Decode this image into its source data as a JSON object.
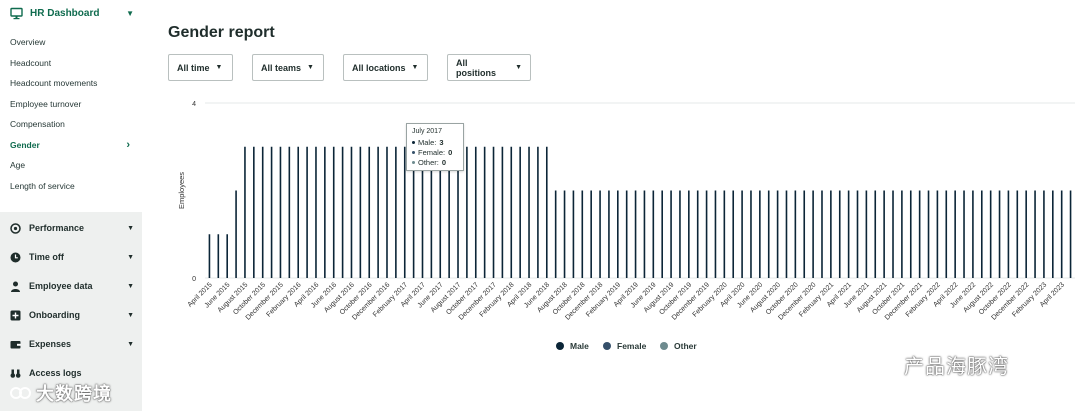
{
  "sidebar": {
    "section_title": "HR Dashboard",
    "sub_items": [
      {
        "label": "Overview",
        "active": false
      },
      {
        "label": "Headcount",
        "active": false
      },
      {
        "label": "Headcount movements",
        "active": false
      },
      {
        "label": "Employee turnover",
        "active": false
      },
      {
        "label": "Compensation",
        "active": false
      },
      {
        "label": "Gender",
        "active": true
      },
      {
        "label": "Age",
        "active": false
      },
      {
        "label": "Length of service",
        "active": false
      }
    ],
    "sections": [
      {
        "label": "Performance",
        "icon": "target-icon"
      },
      {
        "label": "Time off",
        "icon": "clock-icon"
      },
      {
        "label": "Employee data",
        "icon": "person-icon"
      },
      {
        "label": "Onboarding",
        "icon": "plus-square-icon"
      },
      {
        "label": "Expenses",
        "icon": "wallet-icon"
      },
      {
        "label": "Access logs",
        "icon": "binoculars-icon"
      }
    ]
  },
  "page": {
    "title": "Gender report"
  },
  "filters": [
    {
      "label": "All time"
    },
    {
      "label": "All teams"
    },
    {
      "label": "All locations"
    },
    {
      "label": "All positions"
    }
  ],
  "tooltip": {
    "title": "July 2017",
    "rows": [
      {
        "label": "Male:",
        "value": "3"
      },
      {
        "label": "Female:",
        "value": "0"
      },
      {
        "label": "Other:",
        "value": "0"
      }
    ]
  },
  "colors": {
    "male": "#0b2537",
    "female": "#35506a",
    "other": "#6e8b8f",
    "accent": "#0f6b4e"
  },
  "chart_data": {
    "type": "bar",
    "ylabel": "Employees",
    "yticks": [
      0,
      4
    ],
    "ylim": [
      0,
      4
    ],
    "grid": true,
    "legend_position": "bottom-center",
    "start_year": 2015,
    "start_month": 4,
    "categories": [
      "April 2015",
      "May 2015",
      "June 2015",
      "July 2015",
      "August 2015",
      "September 2015",
      "October 2015",
      "November 2015",
      "December 2015",
      "January 2016",
      "February 2016",
      "March 2016",
      "April 2016",
      "May 2016",
      "June 2016",
      "July 2016",
      "August 2016",
      "September 2016",
      "October 2016",
      "November 2016",
      "December 2016",
      "January 2017",
      "February 2017",
      "March 2017",
      "April 2017",
      "May 2017",
      "June 2017",
      "July 2017",
      "August 2017",
      "September 2017",
      "October 2017",
      "November 2017",
      "December 2017",
      "January 2018",
      "February 2018",
      "March 2018",
      "April 2018",
      "May 2018",
      "June 2018",
      "July 2018",
      "August 2018",
      "September 2018",
      "October 2018",
      "November 2018",
      "December 2018",
      "January 2019",
      "February 2019",
      "March 2019",
      "April 2019",
      "May 2019",
      "June 2019",
      "July 2019",
      "August 2019",
      "September 2019",
      "October 2019",
      "November 2019",
      "December 2019",
      "January 2020",
      "February 2020",
      "March 2020",
      "April 2020",
      "May 2020",
      "June 2020",
      "July 2020",
      "August 2020",
      "September 2020",
      "October 2020",
      "November 2020",
      "December 2020",
      "January 2021",
      "February 2021",
      "March 2021",
      "April 2021",
      "May 2021",
      "June 2021",
      "July 2021",
      "August 2021",
      "September 2021",
      "October 2021",
      "November 2021",
      "December 2021",
      "January 2022",
      "February 2022",
      "March 2022",
      "April 2022",
      "May 2022",
      "June 2022",
      "July 2022",
      "August 2022",
      "September 2022",
      "October 2022",
      "November 2022",
      "December 2022",
      "January 2023",
      "February 2023",
      "March 2023",
      "April 2023",
      "May 2023"
    ],
    "series": [
      {
        "name": "Male",
        "values": [
          1,
          1,
          1,
          2,
          3,
          3,
          3,
          3,
          3,
          3,
          3,
          3,
          3,
          3,
          3,
          3,
          3,
          3,
          3,
          3,
          3,
          3,
          3,
          3,
          3,
          3,
          3,
          3,
          3,
          3,
          3,
          3,
          3,
          3,
          3,
          3,
          3,
          3,
          3,
          2,
          2,
          2,
          2,
          2,
          2,
          2,
          2,
          2,
          2,
          2,
          2,
          2,
          2,
          2,
          2,
          2,
          2,
          2,
          2,
          2,
          2,
          2,
          2,
          2,
          2,
          2,
          2,
          2,
          2,
          2,
          2,
          2,
          2,
          2,
          2,
          2,
          2,
          2,
          2,
          2,
          2,
          2,
          2,
          2,
          2,
          2,
          2,
          2,
          2,
          2,
          2,
          2,
          2,
          2,
          2,
          2,
          2,
          2
        ]
      },
      {
        "name": "Female",
        "values": [
          0,
          0,
          0,
          0,
          0,
          0,
          0,
          0,
          0,
          0,
          0,
          0,
          0,
          0,
          0,
          0,
          0,
          0,
          0,
          0,
          0,
          0,
          0,
          0,
          0,
          0,
          0,
          0,
          0,
          0,
          0,
          0,
          0,
          0,
          0,
          0,
          0,
          0,
          0,
          0,
          0,
          0,
          0,
          0,
          0,
          0,
          0,
          0,
          0,
          0,
          0,
          0,
          0,
          0,
          0,
          0,
          0,
          0,
          0,
          0,
          0,
          0,
          0,
          0,
          0,
          0,
          0,
          0,
          0,
          0,
          0,
          0,
          0,
          0,
          0,
          0,
          0,
          0,
          0,
          0,
          0,
          0,
          0,
          0,
          0,
          0,
          0,
          0,
          0,
          0,
          0,
          0,
          0,
          0,
          0,
          0,
          0,
          0
        ]
      },
      {
        "name": "Other",
        "values": [
          0,
          0,
          0,
          0,
          0,
          0,
          0,
          0,
          0,
          0,
          0,
          0,
          0,
          0,
          0,
          0,
          0,
          0,
          0,
          0,
          0,
          0,
          0,
          0,
          0,
          0,
          0,
          0,
          0,
          0,
          0,
          0,
          0,
          0,
          0,
          0,
          0,
          0,
          0,
          0,
          0,
          0,
          0,
          0,
          0,
          0,
          0,
          0,
          0,
          0,
          0,
          0,
          0,
          0,
          0,
          0,
          0,
          0,
          0,
          0,
          0,
          0,
          0,
          0,
          0,
          0,
          0,
          0,
          0,
          0,
          0,
          0,
          0,
          0,
          0,
          0,
          0,
          0,
          0,
          0,
          0,
          0,
          0,
          0,
          0,
          0,
          0,
          0,
          0,
          0,
          0,
          0,
          0,
          0,
          0,
          0,
          0,
          0
        ]
      }
    ],
    "visible_tick_labels": [
      "April 2015",
      "June 2015",
      "August 2015",
      "October 2015",
      "December 2015",
      "February 2016",
      "April 2016",
      "June 2016",
      "August 2016",
      "October 2016",
      "December 2016",
      "February 2017",
      "April 2017",
      "June 2017",
      "August 2017",
      "October 2017",
      "December 2017",
      "February 2018",
      "April 2018",
      "June 2018",
      "August 2018",
      "October 2018",
      "December 2018",
      "February 2019",
      "April 2019",
      "June 2019",
      "August 2019",
      "October 2019",
      "December 2019",
      "February 2020",
      "April 2020",
      "June 2020",
      "August 2020",
      "October 2020",
      "December 2020",
      "February 2021",
      "April 2021",
      "June 2021",
      "August 2021",
      "October 2021",
      "December 2021",
      "February 2022",
      "April 2022",
      "June 2022",
      "August 2022",
      "October 2022",
      "December 2022",
      "February 2023",
      "April 2023"
    ]
  },
  "watermarks": {
    "left": "大数跨境",
    "right": "产品海豚湾"
  }
}
